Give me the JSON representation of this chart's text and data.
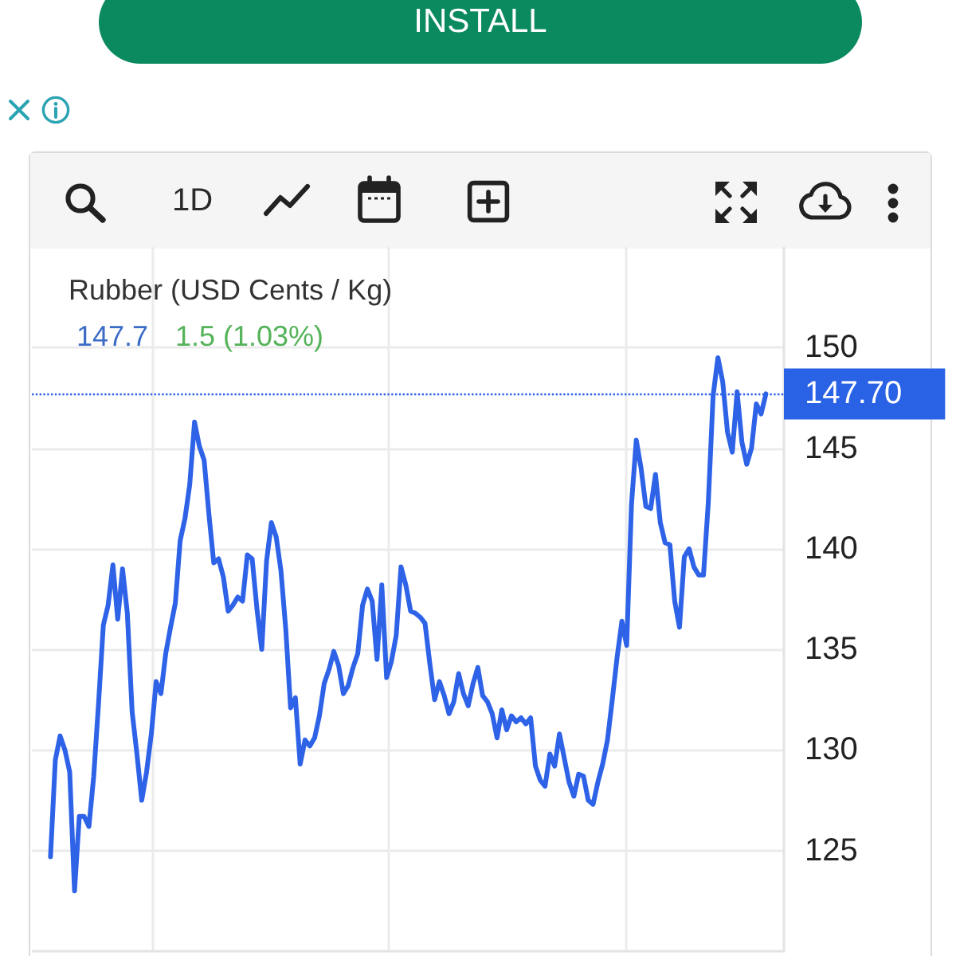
{
  "chart_data": {
    "type": "line",
    "title": "Rubber (USD Cents / Kg)",
    "annotations": [
      "147.7",
      "1.5 (1.03%)",
      "INSTALL",
      "1D"
    ],
    "categories": [
      null,
      null,
      null,
      null,
      null,
      null,
      null,
      null,
      null,
      null,
      null,
      null,
      null,
      null,
      null,
      null,
      null,
      null,
      null,
      null,
      null,
      null,
      null,
      null,
      null,
      null,
      null,
      null,
      null,
      null,
      null,
      null,
      null,
      null,
      null,
      null,
      null,
      null,
      null,
      null,
      null,
      null,
      null,
      null,
      null,
      null,
      null,
      null,
      null,
      null,
      null,
      null,
      null,
      null,
      null,
      null,
      null,
      null,
      null,
      null,
      null,
      null,
      null,
      null,
      null,
      null,
      null,
      null,
      null,
      null,
      null,
      null,
      null,
      null,
      null,
      null,
      null,
      null,
      null,
      null,
      null,
      null,
      null,
      null,
      null,
      null,
      null,
      null,
      null,
      null,
      null,
      null,
      null,
      null,
      null,
      null,
      null,
      null,
      null,
      null,
      null,
      null,
      null,
      null,
      null,
      null,
      null,
      null,
      null,
      null,
      null,
      null,
      null,
      null,
      null,
      null,
      null,
      null,
      null,
      null,
      null,
      null,
      null,
      null,
      null,
      null,
      null,
      null,
      null,
      null,
      null,
      null,
      null,
      null,
      null,
      null,
      null,
      null,
      null,
      null,
      null,
      null,
      null,
      null,
      null,
      null,
      null,
      null,
      null,
      null
    ],
    "values": [
      124.7,
      129.5,
      130.7,
      130.0,
      128.9,
      123.0,
      126.7,
      126.7,
      126.2,
      128.7,
      132.3,
      136.2,
      137.2,
      139.2,
      136.5,
      139.0,
      136.8,
      131.9,
      129.8,
      127.5,
      128.9,
      130.8,
      133.4,
      132.8,
      134.8,
      136.1,
      137.3,
      140.4,
      141.5,
      143.2,
      146.3,
      145.1,
      144.4,
      141.7,
      139.3,
      139.5,
      138.6,
      136.9,
      137.2,
      137.6,
      137.4,
      139.7,
      139.5,
      137.0,
      135.0,
      139.4,
      141.3,
      140.6,
      138.9,
      136.0,
      132.1,
      132.6,
      129.3,
      130.5,
      130.2,
      130.6,
      131.7,
      133.3,
      134.0,
      134.9,
      134.2,
      132.8,
      133.2,
      134.1,
      134.8,
      137.2,
      138.0,
      137.4,
      134.5,
      138.2,
      133.6,
      134.4,
      135.7,
      139.1,
      138.2,
      136.9,
      136.8,
      136.6,
      136.3,
      134.3,
      132.5,
      133.4,
      132.7,
      131.8,
      132.4,
      133.8,
      132.8,
      132.2,
      133.3,
      134.1,
      132.7,
      132.4,
      131.8,
      130.6,
      132.0,
      131.0,
      131.7,
      131.4,
      131.6,
      131.3,
      131.6,
      129.2,
      128.5,
      128.2,
      129.8,
      129.2,
      130.8,
      129.6,
      128.4,
      127.7,
      128.8,
      128.7,
      127.5,
      127.3,
      128.4,
      129.3,
      130.5,
      132.5,
      134.6,
      136.4,
      135.2,
      142.2,
      145.4,
      144.0,
      142.1,
      142.0,
      143.7,
      141.3,
      140.3,
      140.2,
      137.4,
      136.1,
      139.6,
      140.0,
      139.1,
      138.7,
      138.7,
      142.3,
      147.6,
      149.5,
      148.3,
      145.8,
      144.8,
      147.8,
      145.3,
      144.2,
      145.0,
      147.2,
      146.7,
      147.7
    ],
    "color": "#2e63e8",
    "ylim": [
      120,
      155
    ],
    "yticks": [
      125,
      130,
      135,
      140,
      145,
      150
    ],
    "ref_lines": [
      {
        "axis": "y",
        "value": 147.7,
        "label": "147.70",
        "color": "#2a62e6",
        "line_style": "dotted"
      }
    ],
    "grid": true,
    "tick_labels": "y",
    "marker": "none",
    "line_style": "solid"
  }
}
